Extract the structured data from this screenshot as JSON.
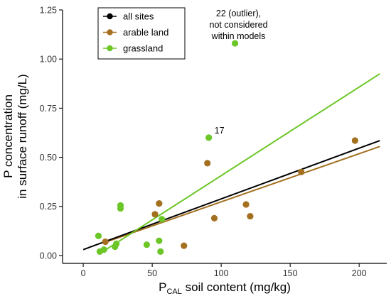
{
  "chart_data": {
    "type": "scatter",
    "xlabel_main": "P",
    "xlabel_sub": "CAL",
    "xlabel_rest": " soil content (mg/kg)",
    "ylabel_line1": "P concentration",
    "ylabel_line2": "in surface runoff (mg/L)",
    "xlim": [
      -15,
      220
    ],
    "ylim": [
      -0.04,
      1.25
    ],
    "xticks": [
      0,
      50,
      100,
      150,
      200
    ],
    "xtick_labels": [
      "0",
      "50",
      "100",
      "150",
      "200"
    ],
    "yticks": [
      0.0,
      0.25,
      0.5,
      0.75,
      1.0,
      1.25
    ],
    "ytick_labels": [
      "0.00",
      "0.25",
      "0.50",
      "0.75",
      "1.00",
      "1.25"
    ],
    "grid": false,
    "legend_position": "top-left",
    "legend": [
      {
        "label": "all sites",
        "color": "#000000"
      },
      {
        "label": "arable land",
        "color": "#a4701f"
      },
      {
        "label": "grassland",
        "color": "#6cc627"
      }
    ],
    "series": [
      {
        "name": "arable land",
        "color": "#a4701f",
        "points": [
          {
            "x": 16,
            "y": 0.07
          },
          {
            "x": 52,
            "y": 0.21
          },
          {
            "x": 55,
            "y": 0.265
          },
          {
            "x": 73,
            "y": 0.05
          },
          {
            "x": 90,
            "y": 0.47
          },
          {
            "x": 95,
            "y": 0.19
          },
          {
            "x": 118,
            "y": 0.26
          },
          {
            "x": 121,
            "y": 0.2
          },
          {
            "x": 158,
            "y": 0.425
          },
          {
            "x": 197,
            "y": 0.585
          }
        ]
      },
      {
        "name": "grassland",
        "color": "#6cc627",
        "points": [
          {
            "x": 11,
            "y": 0.1
          },
          {
            "x": 12,
            "y": 0.02
          },
          {
            "x": 15,
            "y": 0.03
          },
          {
            "x": 23,
            "y": 0.045
          },
          {
            "x": 24,
            "y": 0.06
          },
          {
            "x": 27,
            "y": 0.24
          },
          {
            "x": 27,
            "y": 0.255
          },
          {
            "x": 46,
            "y": 0.055
          },
          {
            "x": 55,
            "y": 0.075
          },
          {
            "x": 56,
            "y": 0.02
          },
          {
            "x": 57,
            "y": 0.185
          },
          {
            "x": 91,
            "y": 0.6
          },
          {
            "x": 110,
            "y": 1.08
          }
        ]
      }
    ],
    "fit_lines": [
      {
        "name": "all sites",
        "color": "#000000",
        "x": [
          0,
          215
        ],
        "y": [
          0.03,
          0.585
        ]
      },
      {
        "name": "arable land",
        "color": "#a4701f",
        "x": [
          15,
          215
        ],
        "y": [
          0.065,
          0.555
        ]
      },
      {
        "name": "grassland",
        "color": "#6cc627",
        "x": [
          12,
          215
        ],
        "y": [
          0.01,
          0.925
        ]
      }
    ],
    "annotations": [
      {
        "text": "17",
        "x": 91,
        "y": 0.6,
        "anchor": "right-of-point"
      },
      {
        "lines": [
          "22 (outlier),",
          "not considered",
          "within models"
        ],
        "x": 110,
        "y": 1.08,
        "anchor": "above-right-of-point"
      }
    ]
  }
}
